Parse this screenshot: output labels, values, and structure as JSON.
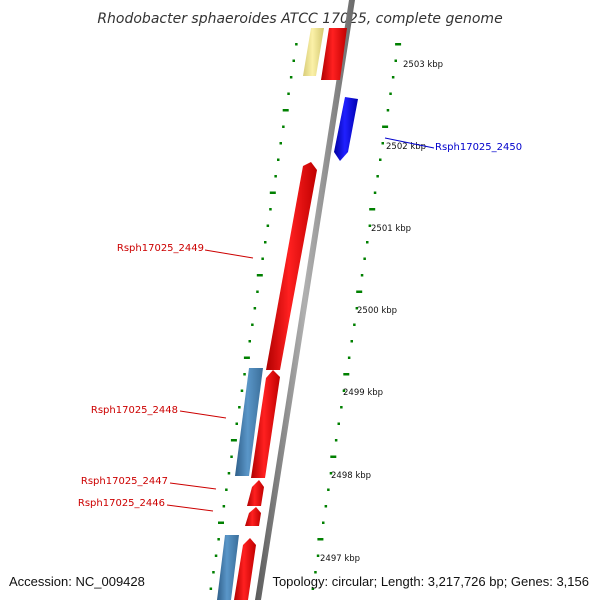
{
  "title": "Rhodobacter sphaeroides ATCC 17025, complete genome",
  "footer": {
    "accession": "Accession: NC_009428",
    "topology": "Topology: circular; Length: 3,217,726 bp; Genes: 3,156"
  },
  "axis_labels": [
    "2503 kbp",
    "2502 kbp",
    "2501 kbp",
    "2500 kbp",
    "2499 kbp",
    "2498 kbp",
    "2497 kbp"
  ],
  "genes": [
    {
      "label": "Rsph17025_2450",
      "color": "#0000cc"
    },
    {
      "label": "Rsph17025_2449",
      "color": "#cc0000"
    },
    {
      "label": "Rsph17025_2448",
      "color": "#cc0000"
    },
    {
      "label": "Rsph17025_2447",
      "color": "#cc0000"
    },
    {
      "label": "Rsph17025_2446",
      "color": "#cc0000"
    }
  ],
  "colors": {
    "cds_red": "#ff0000",
    "cds_blue": "#0000ff",
    "feature_steelblue": "#4682b4",
    "feature_khaki": "#f0e68c",
    "tick_green": "#008000",
    "backbone_gray": "#808080"
  }
}
